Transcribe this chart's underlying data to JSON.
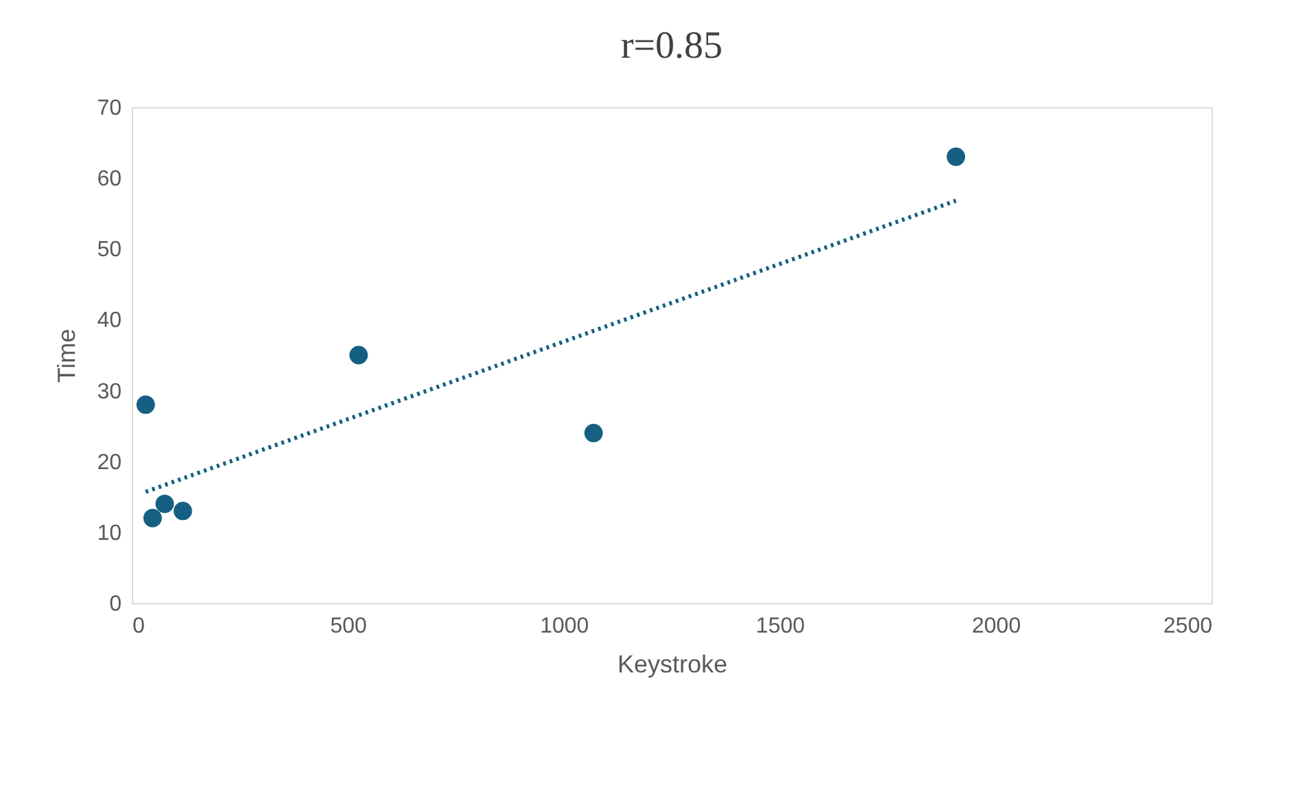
{
  "chart_data": {
    "type": "scatter",
    "title": "r=0.85",
    "xlabel": "Keystroke",
    "ylabel": "Time",
    "xlim": [
      0,
      2500
    ],
    "xticks": [
      0,
      500,
      1000,
      1500,
      2000,
      2500
    ],
    "ylim": [
      0,
      70
    ],
    "yticks": [
      0,
      10,
      20,
      30,
      40,
      50,
      60,
      70
    ],
    "grid": false,
    "series": [
      {
        "marker": "circle",
        "color": "#156082",
        "x": [
          32,
          48,
          76,
          118,
          525,
          1069,
          1908
        ],
        "values": [
          28,
          12,
          14,
          13,
          35,
          24,
          63
        ]
      },
      {
        "type": "line",
        "marker": "none",
        "line_style": "dotted",
        "color": "#156082",
        "x": [
          32,
          1908
        ],
        "values": [
          15.7,
          56.8
        ]
      }
    ]
  }
}
